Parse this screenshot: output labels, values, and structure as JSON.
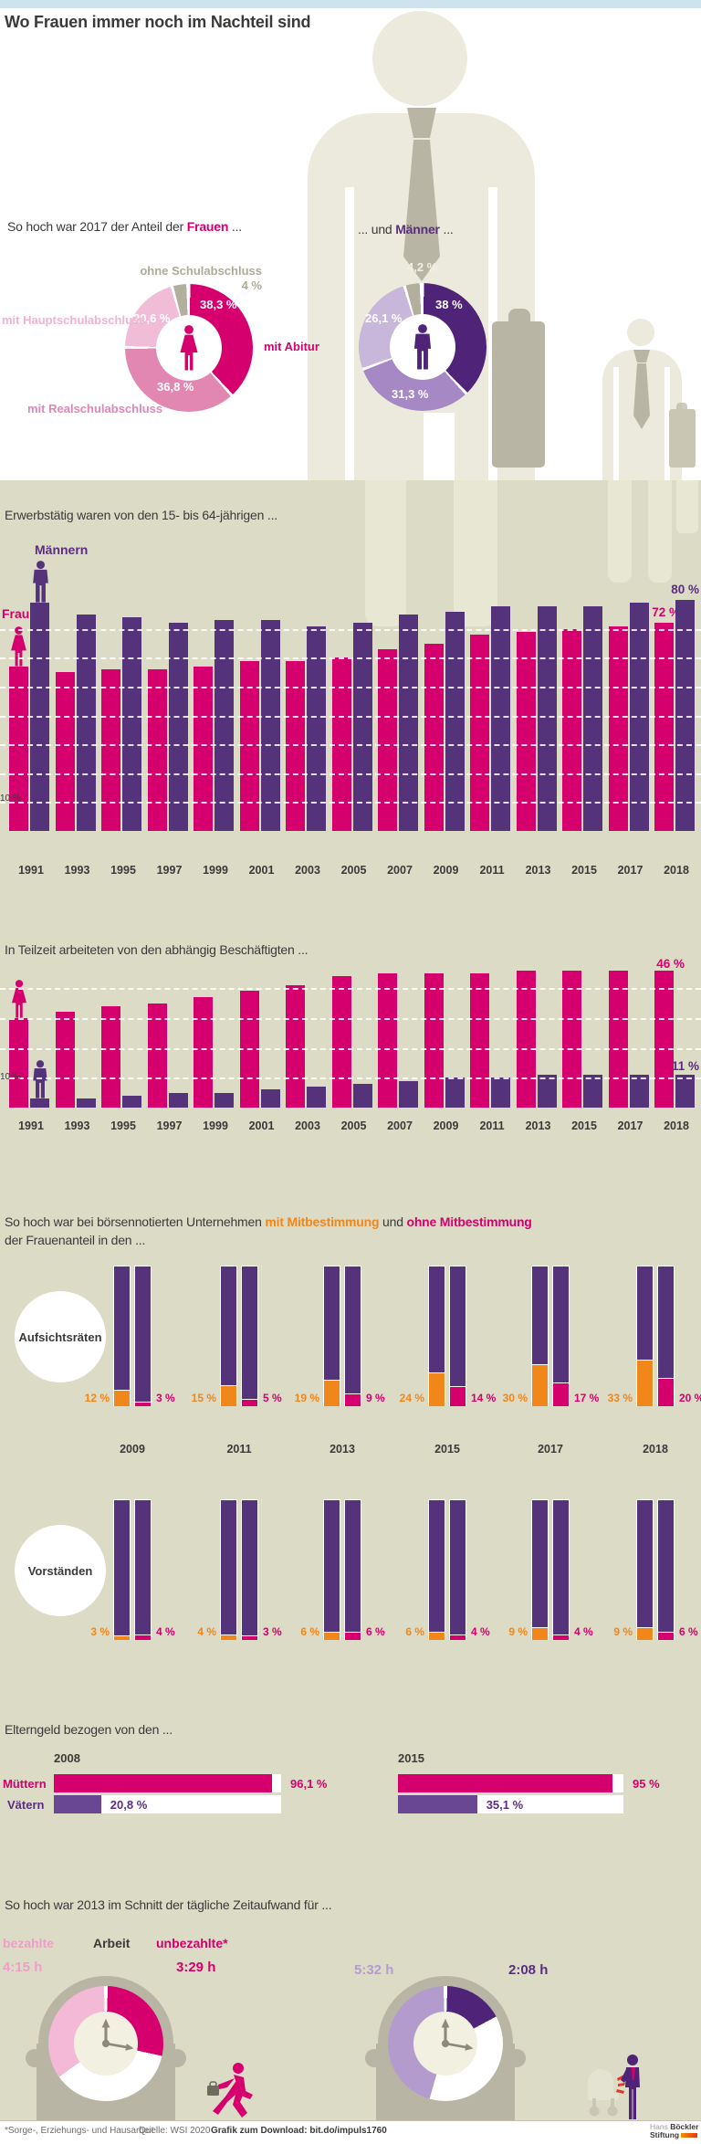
{
  "title": "Wo Frauen immer noch im Nachteil sind",
  "colors": {
    "magenta": "#d5006d",
    "pinkMid": "#e187b2",
    "pinkLight": "#f1bcd7",
    "pinkPale": "#f3b9d6",
    "purple": "#55337b",
    "purpleDark": "#4f2478",
    "purpleMid": "#a588c4",
    "purpleLight": "#c9b6db",
    "clockPurplePale": "#b39ccd",
    "grayslice": "#b2af9d",
    "orange": "#f1861b",
    "beige": "#dcdbc6",
    "topbar_blue": "#cfe3ee",
    "dark": "#3a3a39"
  },
  "chart_data": [
    {
      "id": "education_women",
      "type": "pie",
      "title_parts": [
        [
          "So hoch war 2017 der Anteil der ",
          "dark"
        ],
        [
          "Frauen",
          "magenta"
        ],
        [
          " ...",
          "dark"
        ]
      ],
      "slices": [
        {
          "label": "mit Abitur",
          "value": 38.3,
          "display": "38,3 %"
        },
        {
          "label": "mit Realschulabschluss",
          "value": 36.8,
          "display": "36,8 %"
        },
        {
          "label": "mit Hauptschulabschluss",
          "value": 20.6,
          "display": "20,6 %"
        },
        {
          "label": "ohne Schulabschluss",
          "value": 4.0,
          "display": "4 %"
        }
      ]
    },
    {
      "id": "education_men",
      "type": "pie",
      "title_parts": [
        [
          "... und ",
          "dark"
        ],
        [
          "Männer",
          "purple"
        ],
        [
          " ...",
          "dark"
        ]
      ],
      "slices": [
        {
          "label": "mit Abitur",
          "value": 38.0,
          "display": "38 %"
        },
        {
          "label": "mit Realschulabschluss",
          "value": 31.3,
          "display": "31,3 %"
        },
        {
          "label": "mit Hauptschulabschluss",
          "value": 26.1,
          "display": "26,1 %"
        },
        {
          "label": "ohne Schulabschluss",
          "value": 4.2,
          "display": "4,2 %"
        }
      ]
    },
    {
      "id": "employment",
      "type": "bar",
      "title": "Erwerbstätig waren von den 15- bis 64-jährigen ...",
      "categories": [
        "1991",
        "1993",
        "1995",
        "1997",
        "1999",
        "2001",
        "2003",
        "2005",
        "2007",
        "2009",
        "2011",
        "2013",
        "2015",
        "2017",
        "2018"
      ],
      "series": [
        {
          "name": "Frauen",
          "color": "magenta",
          "values": [
            57,
            55,
            56,
            56,
            57,
            59,
            59,
            60,
            63,
            65,
            68,
            69,
            70,
            71,
            72
          ]
        },
        {
          "name": "Männern",
          "color": "purple",
          "values": [
            79,
            75,
            74,
            72,
            73,
            73,
            71,
            72,
            75,
            76,
            78,
            78,
            78,
            79,
            80
          ]
        }
      ],
      "ylim": [
        0,
        85
      ],
      "axis_tick": "10 %",
      "grid": "white dashed every 10 %",
      "end_labels": [
        {
          "series": "Männern",
          "text": "80 %"
        },
        {
          "series": "Frauen",
          "text": "72 %"
        }
      ]
    },
    {
      "id": "parttime",
      "type": "bar",
      "title": "In Teilzeit arbeiteten von den abhängig Beschäftigten ...",
      "categories": [
        "1991",
        "1993",
        "1995",
        "1997",
        "1999",
        "2001",
        "2003",
        "2005",
        "2007",
        "2009",
        "2011",
        "2013",
        "2015",
        "2017",
        "2018"
      ],
      "series": [
        {
          "name": "Frauen",
          "color": "magenta",
          "values": [
            30,
            32,
            34,
            35,
            37,
            39,
            41,
            44,
            45,
            45,
            45,
            46,
            46,
            46,
            46
          ]
        },
        {
          "name": "Männer",
          "color": "purple",
          "values": [
            3,
            3,
            4,
            5,
            5,
            6,
            7,
            8,
            9,
            10,
            10,
            11,
            11,
            11,
            11
          ]
        }
      ],
      "ylim": [
        0,
        50
      ],
      "axis_tick": "10 %",
      "grid": "white dashed every 10 %",
      "end_labels": [
        {
          "series": "Frauen",
          "text": "46 %"
        },
        {
          "series": "Männer",
          "text": "11 %"
        }
      ]
    },
    {
      "id": "boards",
      "type": "stacked-bar",
      "title_parts": [
        [
          "So hoch war bei börsennotierten Unternehmen ",
          "dark"
        ],
        [
          "mit Mitbestimmung",
          "orange"
        ],
        [
          " und ",
          "dark"
        ],
        [
          "ohne Mitbestimmung",
          "pink"
        ]
      ],
      "title_line2": "der Frauenanteil in den ...",
      "categories": [
        "2009",
        "2011",
        "2013",
        "2015",
        "2017",
        "2018"
      ],
      "rows": [
        {
          "label": "Aufsichtsräten",
          "mit": {
            "values": [
              12,
              15,
              19,
              24,
              30,
              33
            ],
            "displays": [
              "12 %",
              "15 %",
              "19 %",
              "24 %",
              "30 %",
              "33 %"
            ]
          },
          "ohne": {
            "values": [
              3,
              5,
              9,
              14,
              17,
              20
            ],
            "displays": [
              "3 %",
              "5 %",
              "9 %",
              "14 %",
              "17 %",
              "20 %"
            ]
          }
        },
        {
          "label": "Vorständen",
          "mit": {
            "values": [
              3,
              4,
              6,
              6,
              9,
              9
            ],
            "displays": [
              "3 %",
              "4 %",
              "6 %",
              "6 %",
              "9 %",
              "9 %"
            ]
          },
          "ohne": {
            "values": [
              4,
              3,
              6,
              4,
              4,
              6
            ],
            "displays": [
              "4 %",
              "3 %",
              "6 %",
              "4 %",
              "4 %",
              "6 %"
            ]
          }
        }
      ]
    },
    {
      "id": "elterngeld",
      "type": "hbar",
      "title": "Elterngeld bezogen von den ...",
      "row_labels": {
        "muetter": "Müttern",
        "vaeter": "Vätern"
      },
      "groups": [
        {
          "year": "2008",
          "muetter": 96.1,
          "muetter_display": "96,1 %",
          "vaeter": 20.8,
          "vaeter_display": "20,8 %"
        },
        {
          "year": "2015",
          "muetter": 95.0,
          "muetter_display": "95 %",
          "vaeter": 35.1,
          "vaeter_display": "35,1 %"
        }
      ]
    },
    {
      "id": "timeuse",
      "type": "clock-pie",
      "title": "So hoch war 2013 im Schnitt der tägliche Zeitaufwand für ...",
      "legend": {
        "paid": "bezahlte",
        "middle": "Arbeit",
        "unpaid": "unbezahlte*"
      },
      "dial_hours": 12,
      "women": {
        "paid_hours": 4.25,
        "paid_display": "4:15 h",
        "unpaid_hours": 3.4833,
        "unpaid_display": "3:29 h"
      },
      "men": {
        "paid_hours": 5.5333,
        "paid_display": "5:32 h",
        "unpaid_hours": 2.1333,
        "unpaid_display": "2:08 h"
      }
    }
  ],
  "footer": {
    "note": "*Sorge-, Erziehungs- und Hausarbeit",
    "source": "Quelle: WSI 2020",
    "download": "Grafik zum Download: bit.do/impuls1760",
    "logo": {
      "line1_light": "Hans",
      "line1_bold": "Böckler",
      "line2_bold": "Stiftung"
    }
  }
}
